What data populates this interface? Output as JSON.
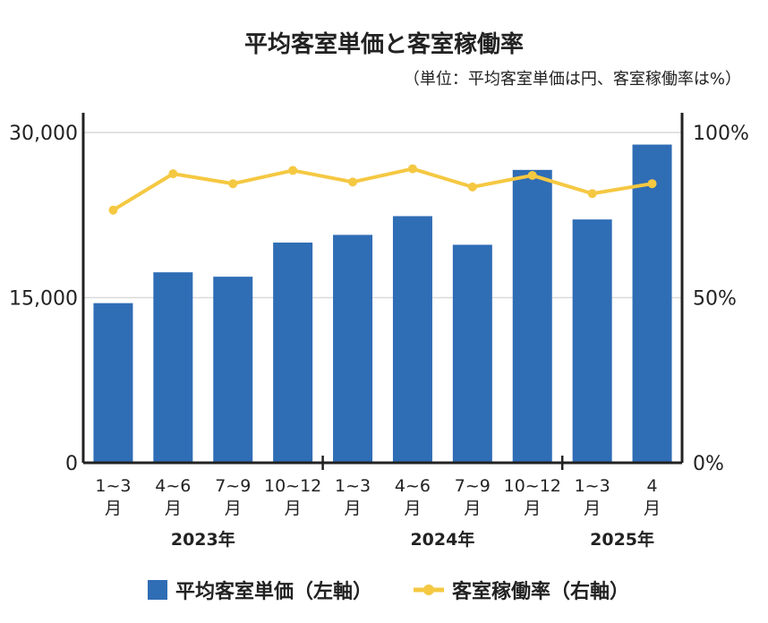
{
  "chart_data": {
    "type": "bar+line",
    "title": "平均客室単価と客室稼働率",
    "subtitle": "（単位：平均客室単価は円、客室稼働率は%）",
    "categories": [
      {
        "line1": "1~3",
        "line2": "月"
      },
      {
        "line1": "4~6",
        "line2": "月"
      },
      {
        "line1": "7~9",
        "line2": "月"
      },
      {
        "line1": "10~12",
        "line2": "月"
      },
      {
        "line1": "1~3",
        "line2": "月"
      },
      {
        "line1": "4~6",
        "line2": "月"
      },
      {
        "line1": "7~9",
        "line2": "月"
      },
      {
        "line1": "10~12",
        "line2": "月"
      },
      {
        "line1": "1~3",
        "line2": "月"
      },
      {
        "line1": "4",
        "line2": "月"
      }
    ],
    "year_groups": [
      {
        "label": "2023年",
        "start": 0,
        "end": 3
      },
      {
        "label": "2024年",
        "start": 4,
        "end": 7
      },
      {
        "label": "2025年",
        "start": 8,
        "end": 9
      }
    ],
    "series": [
      {
        "name": "平均客室単価（左軸）",
        "type": "bar",
        "axis": "left",
        "color": "#2f6db5",
        "values": [
          14500,
          17300,
          16900,
          20000,
          20700,
          22400,
          19800,
          26600,
          22100,
          28900
        ]
      },
      {
        "name": "客室稼働率（右軸）",
        "type": "line",
        "axis": "right",
        "color": "#f5c842",
        "values": [
          76.5,
          87.5,
          84.5,
          88.5,
          85.0,
          89.0,
          83.5,
          87.0,
          81.5,
          84.5
        ]
      }
    ],
    "y_left": {
      "min": 0,
      "max": 30000,
      "ticks": [
        0,
        15000,
        30000
      ],
      "tick_labels": [
        "0",
        "15,000",
        "30,000"
      ]
    },
    "y_right": {
      "min": 0,
      "max": 100,
      "ticks": [
        0,
        50,
        100
      ],
      "tick_labels": [
        "0%",
        "50%",
        "100%"
      ]
    },
    "grid": true,
    "legend_position": "bottom"
  }
}
